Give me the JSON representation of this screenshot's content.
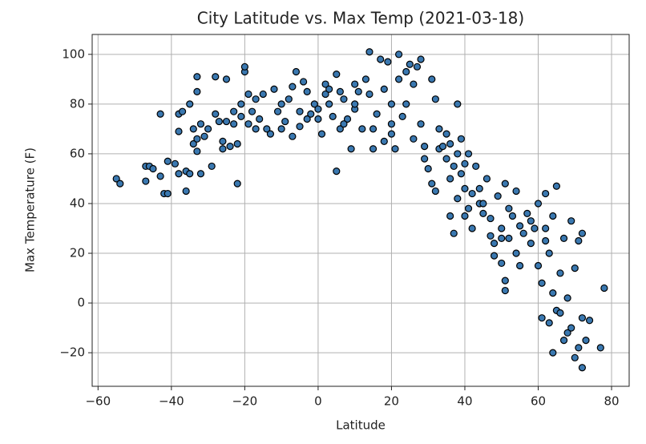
{
  "chart_data": {
    "type": "scatter",
    "title": "City Latitude vs. Max Temp (2021-03-18)",
    "x_label": "Latitude",
    "y_label": "Max Temperature (F)",
    "color": "#3a78b0",
    "edge_color": "#000000",
    "grid": true,
    "xlim": [
      -61.6,
      84.8
    ],
    "ylim": [
      -33.5,
      108
    ],
    "xticks": [
      {
        "value": -60,
        "label": "−60"
      },
      {
        "value": -40,
        "label": "−40"
      },
      {
        "value": -20,
        "label": "−20"
      },
      0,
      20,
      40,
      60,
      80
    ],
    "yticks": [
      {
        "value": -20,
        "label": "−20"
      },
      0,
      20,
      40,
      60,
      80,
      100
    ],
    "x": [
      -55,
      -54,
      -47,
      -46,
      -47,
      -45,
      -43,
      -43,
      -42,
      -41,
      -41,
      -39,
      -38,
      -38,
      -38,
      -37,
      -36,
      -36,
      -35,
      -35,
      -34,
      -34,
      -33,
      -33,
      -33,
      -33,
      -32,
      -32,
      -31,
      -30,
      -29,
      -28,
      -28,
      -27,
      -26,
      -26,
      -25,
      -25,
      -24,
      -23,
      -23,
      -22,
      -22,
      -21,
      -21,
      -20,
      -20,
      -19,
      -19,
      -18,
      -17,
      -17,
      -16,
      -15,
      -14,
      -13,
      -12,
      -11,
      -10,
      -9,
      -8,
      -7,
      -7,
      -6,
      -5,
      -5,
      -4,
      -3,
      -3,
      -2,
      -1,
      0,
      1,
      2,
      2,
      3,
      4,
      5,
      5,
      6,
      6,
      7,
      8,
      9,
      10,
      10,
      11,
      12,
      13,
      14,
      14,
      15,
      15,
      16,
      17,
      18,
      18,
      19,
      20,
      20,
      21,
      22,
      22,
      23,
      24,
      25,
      26,
      26,
      27,
      28,
      28,
      29,
      30,
      31,
      31,
      32,
      32,
      33,
      33,
      34,
      35,
      35,
      36,
      36,
      37,
      37,
      38,
      38,
      38,
      39,
      39,
      40,
      40,
      41,
      41,
      42,
      42,
      43,
      44,
      45,
      46,
      47,
      47,
      48,
      48,
      49,
      50,
      50,
      51,
      51,
      51,
      52,
      52,
      53,
      54,
      54,
      55,
      55,
      56,
      57,
      58,
      59,
      60,
      60,
      61,
      61,
      62,
      62,
      63,
      63,
      64,
      64,
      64,
      65,
      65,
      66,
      66,
      67,
      67,
      68,
      68,
      69,
      69,
      70,
      70,
      71,
      71,
      72,
      72,
      72,
      73,
      74,
      77,
      78,
      0,
      3,
      7,
      10,
      -10,
      20,
      24,
      45,
      50,
      58,
      62,
      40,
      36,
      29,
      44
    ],
    "y": [
      50,
      48,
      55,
      55,
      49,
      54,
      51,
      76,
      44,
      44,
      57,
      56,
      52,
      69,
      76,
      77,
      45,
      53,
      80,
      52,
      64,
      70,
      91,
      85,
      61,
      66,
      52,
      72,
      67,
      70,
      55,
      91,
      76,
      73,
      65,
      62,
      73,
      90,
      63,
      72,
      77,
      64,
      48,
      75,
      80,
      93,
      95,
      84,
      72,
      77,
      82,
      70,
      74,
      84,
      70,
      68,
      86,
      77,
      70,
      73,
      82,
      87,
      67,
      93,
      77,
      71,
      89,
      85,
      74,
      76,
      80,
      74,
      68,
      84,
      88,
      80,
      75,
      92,
      53,
      85,
      70,
      82,
      74,
      62,
      88,
      78,
      85,
      70,
      90,
      101,
      84,
      62,
      70,
      76,
      98,
      86,
      65,
      97,
      80,
      68,
      62,
      100,
      90,
      75,
      93,
      96,
      88,
      66,
      95,
      98,
      72,
      58,
      54,
      90,
      48,
      82,
      45,
      70,
      62,
      63,
      58,
      68,
      35,
      50,
      28,
      55,
      80,
      60,
      42,
      66,
      52,
      46,
      56,
      38,
      60,
      44,
      30,
      55,
      40,
      36,
      50,
      27,
      34,
      24,
      19,
      43,
      30,
      16,
      48,
      9,
      5,
      38,
      26,
      35,
      20,
      45,
      15,
      31,
      28,
      36,
      24,
      30,
      40,
      15,
      8,
      -6,
      25,
      44,
      -8,
      20,
      4,
      -20,
      35,
      47,
      -3,
      12,
      -4,
      -15,
      26,
      2,
      -12,
      33,
      -10,
      14,
      -22,
      -18,
      25,
      28,
      -6,
      -26,
      -15,
      -7,
      -18,
      6,
      78,
      86,
      72,
      80,
      80,
      72,
      80,
      40,
      26,
      33,
      30,
      35,
      64,
      63,
      46
    ]
  }
}
